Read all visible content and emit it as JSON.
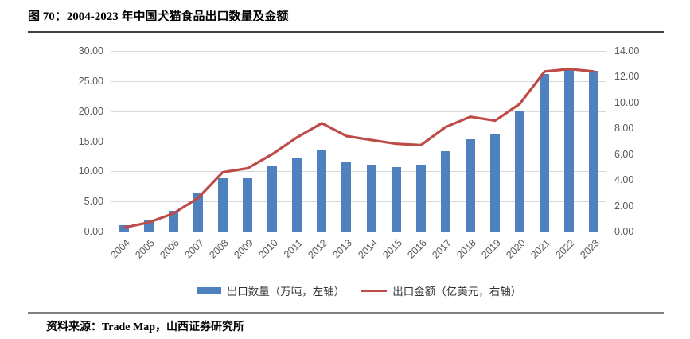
{
  "header": {
    "title": "图 70：2004-2023 年中国犬猫食品出口数量及金额"
  },
  "footer": {
    "source": "资料来源：Trade Map，山西证券研究所"
  },
  "legend": [
    {
      "label": "出口数量（万吨，左轴）",
      "marker": "bar-swatch"
    },
    {
      "label": "出口金额（亿美元，右轴）",
      "marker": "line-swatch"
    }
  ],
  "colors": {
    "bar": "#4E81BD",
    "line": "#BE4B48",
    "grid": "#D9D9D9",
    "axis_line": "#BFBFBF",
    "tick_text": "#595959"
  },
  "chart_data": {
    "type": "bar",
    "combo": "bar+line-dual-axis",
    "title": "图 70：2004-2023 年中国犬猫食品出口数量及金额",
    "categories": [
      "2004",
      "2005",
      "2006",
      "2007",
      "2008",
      "2009",
      "2010",
      "2011",
      "2012",
      "2013",
      "2014",
      "2015",
      "2016",
      "2017",
      "2018",
      "2019",
      "2020",
      "2021",
      "2022",
      "2023"
    ],
    "series": [
      {
        "name": "出口数量（万吨，左轴）",
        "type": "bar",
        "axis": "left",
        "values": [
          1.0,
          1.9,
          3.5,
          6.3,
          8.8,
          8.9,
          11.0,
          12.2,
          13.6,
          11.6,
          11.1,
          10.7,
          11.1,
          13.4,
          15.3,
          16.2,
          19.9,
          26.2,
          26.9,
          26.7
        ]
      },
      {
        "name": "出口金额（亿美元，右轴）",
        "type": "line",
        "axis": "right",
        "values": [
          0.3,
          0.7,
          1.4,
          2.6,
          4.6,
          4.9,
          6.0,
          7.3,
          8.4,
          7.4,
          7.1,
          6.8,
          6.7,
          8.1,
          8.9,
          8.6,
          9.9,
          12.4,
          12.6,
          12.4
        ]
      }
    ],
    "left_axis": {
      "min": 0,
      "max": 30,
      "ticks": [
        0,
        5,
        10,
        15,
        20,
        25,
        30
      ],
      "decimals": 2
    },
    "right_axis": {
      "min": 0,
      "max": 14,
      "ticks": [
        0,
        2,
        4,
        6,
        8,
        10,
        12,
        14
      ],
      "decimals": 2
    },
    "grid": true,
    "legend_position": "bottom",
    "x_label_rotation": -45
  }
}
